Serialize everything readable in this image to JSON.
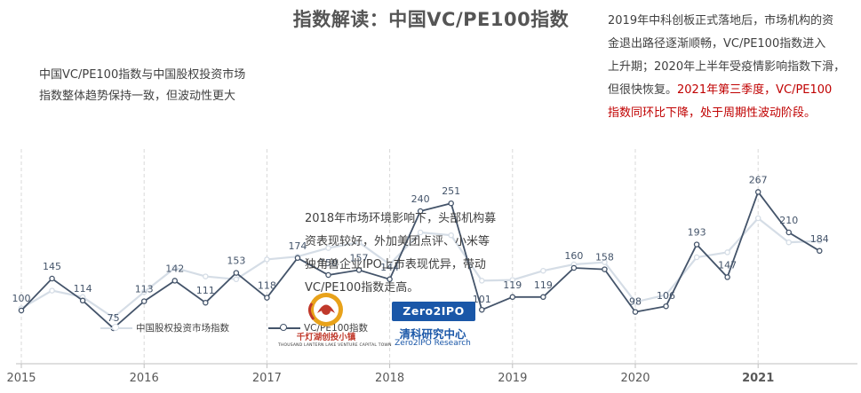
{
  "title": "指数解读：中国VC/PE100指数",
  "annotations": {
    "top_left": [
      "中国VC/PE100指数与中国股权投资市场",
      "指数整体趋势保持一致，但波动性更大"
    ],
    "middle": [
      "2018年市场环境影响下，头部机构募",
      "资表现较好，外加美团点评、小米等",
      "独角兽企业IPO上市表现优异，带动",
      "VC/PE100指数走高。"
    ],
    "top_right_black": [
      "2019年中科创板正式落地后，市场机构的资",
      "金退出路径逐渐顺畅，VC/PE100指数进入",
      "上升期；2020年上半年受疫情影响指数下滑，",
      "但很快恢复。"
    ],
    "top_right_red_inline": "2021年第三季度，VC/PE100",
    "top_right_red": "指数同环比下降，处于周期性波动阶段。"
  },
  "legend": {
    "market_index": "中国股权投资市场指数",
    "vcpe100": "VC/PE100指数"
  },
  "logos": {
    "qiandeng_name": "千灯湖创投小镇",
    "qiandeng_sub": "THOUSAND LANTERN LAKE VENTURE CAPITAL TOWN",
    "zero2ipo_badge": "Zero2IPO",
    "zero2ipo_name": "清科研究中心",
    "zero2ipo_en": "Zero2IPO Research"
  },
  "colors": {
    "vcpe100": "#44546a",
    "market_index": "#d5dde6",
    "axis": "#bfbfbf",
    "gridline": "#d9d9d9",
    "label": "#44546a",
    "highlight_text": "#c00000"
  },
  "chart_data": {
    "type": "line",
    "x_tick_labels": [
      "2015",
      "2016",
      "2017",
      "2018",
      "2019",
      "2020",
      "2021"
    ],
    "x_tick_start_index": [
      0,
      4,
      8,
      12,
      16,
      20,
      24
    ],
    "series": [
      {
        "name": "VC/PE100指数",
        "values": [
          100,
          145,
          114,
          75,
          113,
          142,
          111,
          153,
          118,
          174,
          150,
          157,
          144,
          240,
          251,
          101,
          119,
          119,
          160,
          158,
          98,
          106,
          193,
          147,
          267,
          210,
          184
        ],
        "labels_shown": true
      },
      {
        "name": "中国股权投资市场指数",
        "values": [
          103,
          128,
          119,
          90,
          126,
          160,
          148,
          144,
          172,
          176,
          188,
          196,
          165,
          210,
          206,
          142,
          143,
          156,
          165,
          168,
          112,
          122,
          175,
          182,
          230,
          196,
          198
        ],
        "labels_shown": false
      }
    ],
    "ylim": [
      0,
      300
    ],
    "grid": "vertical dashed at year starts",
    "legend_position": "bottom-left"
  }
}
